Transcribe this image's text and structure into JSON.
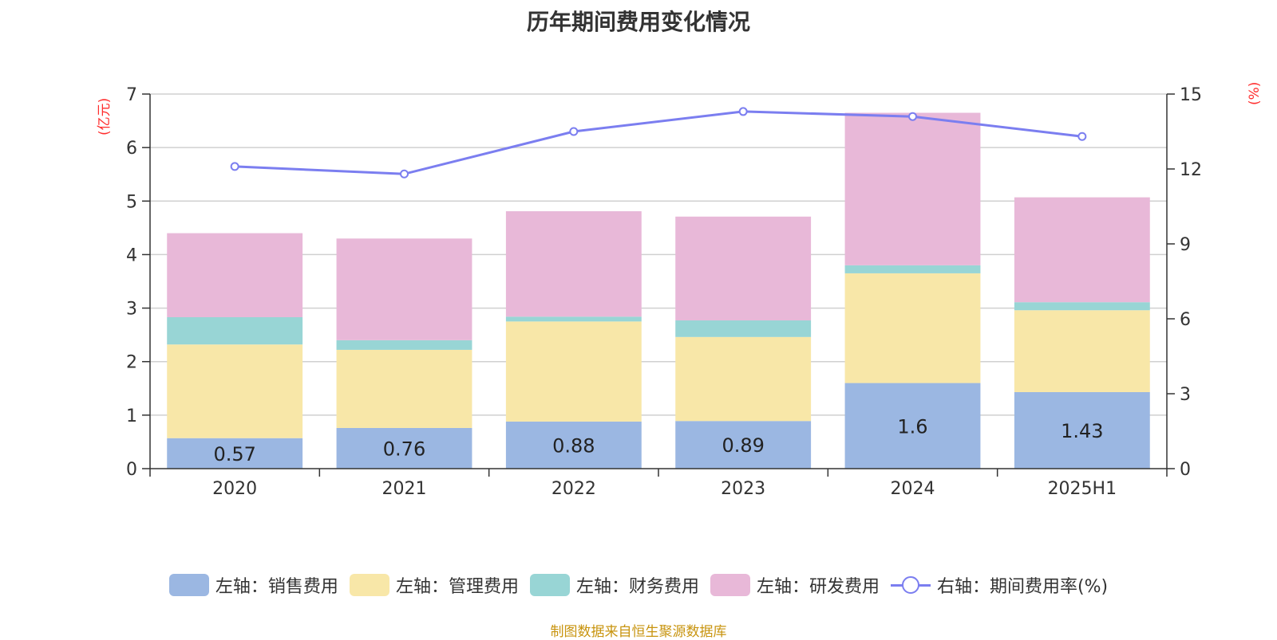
{
  "title": "历年期间费用变化情况",
  "source": "制图数据来自恒生聚源数据库",
  "colors": {
    "sales": "#9bb7e2",
    "admin": "#f8e7a8",
    "finance": "#98d5d5",
    "rd": "#e8b8d8",
    "rate": "#7b7ef0",
    "unit_text": "#ff2d2d"
  },
  "chart_data": {
    "type": "bar",
    "title": "历年期间费用变化情况",
    "stacked": true,
    "categories": [
      "2020",
      "2021",
      "2022",
      "2023",
      "2024",
      "2025H1"
    ],
    "y_left_unit": "(亿元)",
    "y_right_unit": "(%)",
    "ylim_left": [
      0,
      7
    ],
    "yticks_left": [
      "0",
      "1",
      "2",
      "3",
      "4",
      "5",
      "6",
      "7"
    ],
    "ylim_right": [
      0,
      15
    ],
    "yticks_right": [
      "0",
      "3",
      "6",
      "9",
      "12",
      "15"
    ],
    "grid": true,
    "legend_position": "bottom",
    "series": [
      {
        "name": "左轴：销售费用",
        "key": "sales",
        "axis": "left",
        "type": "bar",
        "values": [
          0.57,
          0.76,
          0.88,
          0.89,
          1.6,
          1.43
        ],
        "labels": [
          "0.57",
          "0.76",
          "0.88",
          "0.89",
          "1.6",
          "1.43"
        ]
      },
      {
        "name": "左轴：管理费用",
        "key": "admin",
        "axis": "left",
        "type": "bar",
        "values": [
          1.75,
          1.46,
          1.87,
          1.57,
          2.05,
          1.53
        ]
      },
      {
        "name": "左轴：财务费用",
        "key": "finance",
        "axis": "left",
        "type": "bar",
        "values": [
          0.51,
          0.18,
          0.09,
          0.31,
          0.15,
          0.15
        ]
      },
      {
        "name": "左轴：研发费用",
        "key": "rd",
        "axis": "left",
        "type": "bar",
        "values": [
          1.57,
          1.9,
          1.97,
          1.94,
          2.85,
          1.96
        ]
      },
      {
        "name": "右轴：期间费用率(%)",
        "key": "rate",
        "axis": "right",
        "type": "line",
        "values": [
          12.1,
          11.8,
          13.5,
          14.3,
          14.1,
          13.3
        ]
      }
    ]
  }
}
